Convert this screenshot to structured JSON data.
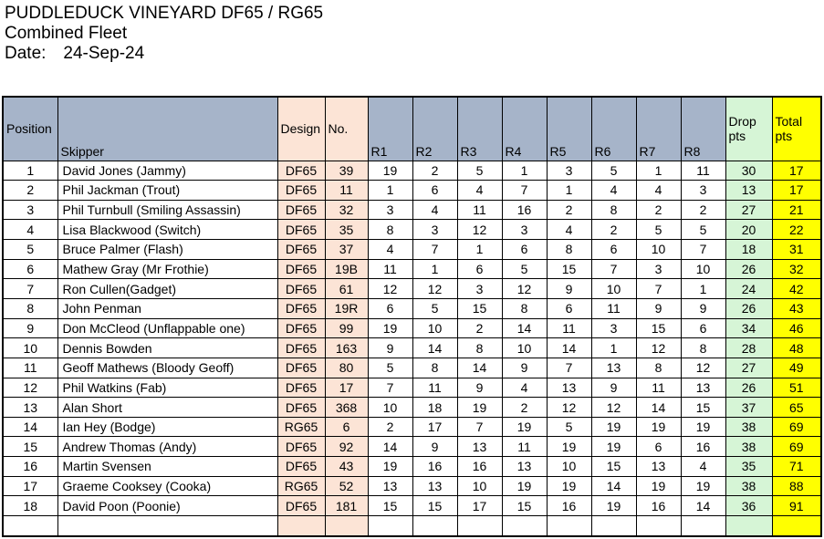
{
  "colors": {
    "header-blue": "#A6B4C9",
    "peach": "#FCE4D6",
    "green": "#D6F5D6",
    "yellow": "#FFFF00",
    "border": "#000000"
  },
  "header": {
    "title": "PUDDLEDUCK VINEYARD DF65 / RG65",
    "subtitle": "Combined Fleet",
    "date_label": "Date:",
    "date_value": "24-Sep-24"
  },
  "table": {
    "headers": {
      "position": "Position",
      "skipper": "Skipper",
      "design": "Design",
      "no": "No.",
      "races": [
        "R1",
        "R2",
        "R3",
        "R4",
        "R5",
        "R6",
        "R7",
        "R8"
      ],
      "drop": "Drop pts",
      "total": "Total pts"
    },
    "rows": [
      {
        "position": 1,
        "skipper": "David Jones (Jammy)",
        "design": "DF65",
        "no": "39",
        "races": [
          19,
          2,
          5,
          1,
          3,
          5,
          1,
          11
        ],
        "drop": 30,
        "total": 17
      },
      {
        "position": 2,
        "skipper": "Phil Jackman (Trout)",
        "design": "DF65",
        "no": "11",
        "races": [
          1,
          6,
          4,
          7,
          1,
          4,
          4,
          3
        ],
        "drop": 13,
        "total": 17
      },
      {
        "position": 3,
        "skipper": "Phil Turnbull (Smiling Assassin)",
        "design": "DF65",
        "no": "32",
        "races": [
          3,
          4,
          11,
          16,
          2,
          8,
          2,
          2
        ],
        "drop": 27,
        "total": 21
      },
      {
        "position": 4,
        "skipper": "Lisa Blackwood (Switch)",
        "design": "DF65",
        "no": "35",
        "races": [
          8,
          3,
          12,
          3,
          4,
          2,
          5,
          5
        ],
        "drop": 20,
        "total": 22
      },
      {
        "position": 5,
        "skipper": "Bruce Palmer (Flash)",
        "design": "DF65",
        "no": "37",
        "races": [
          4,
          7,
          1,
          6,
          8,
          6,
          10,
          7
        ],
        "drop": 18,
        "total": 31
      },
      {
        "position": 6,
        "skipper": "Mathew Gray (Mr Frothie)",
        "design": "DF65",
        "no": "19B",
        "races": [
          11,
          1,
          6,
          5,
          15,
          7,
          3,
          10
        ],
        "drop": 26,
        "total": 32
      },
      {
        "position": 7,
        "skipper": "Ron Cullen(Gadget)",
        "design": "DF65",
        "no": "61",
        "races": [
          12,
          12,
          3,
          12,
          9,
          10,
          7,
          1
        ],
        "drop": 24,
        "total": 42
      },
      {
        "position": 8,
        "skipper": "John Penman",
        "design": "DF65",
        "no": "19R",
        "races": [
          6,
          5,
          15,
          8,
          6,
          11,
          9,
          9
        ],
        "drop": 26,
        "total": 43
      },
      {
        "position": 9,
        "skipper": "Don McCleod (Unflappable one)",
        "design": "DF65",
        "no": "99",
        "races": [
          19,
          10,
          2,
          14,
          11,
          3,
          15,
          6
        ],
        "drop": 34,
        "total": 46
      },
      {
        "position": 10,
        "skipper": "Dennis Bowden",
        "design": "DF65",
        "no": "163",
        "races": [
          9,
          14,
          8,
          10,
          14,
          1,
          12,
          8
        ],
        "drop": 28,
        "total": 48
      },
      {
        "position": 11,
        "skipper": "Geoff Mathews (Bloody Geoff)",
        "design": "DF65",
        "no": "80",
        "races": [
          5,
          8,
          14,
          9,
          7,
          13,
          8,
          12
        ],
        "drop": 27,
        "total": 49
      },
      {
        "position": 12,
        "skipper": "Phil Watkins (Fab)",
        "design": "DF65",
        "no": "17",
        "races": [
          7,
          11,
          9,
          4,
          13,
          9,
          11,
          13
        ],
        "drop": 26,
        "total": 51
      },
      {
        "position": 13,
        "skipper": "Alan Short",
        "design": "DF65",
        "no": "368",
        "races": [
          10,
          18,
          19,
          2,
          12,
          12,
          14,
          15
        ],
        "drop": 37,
        "total": 65
      },
      {
        "position": 14,
        "skipper": "Ian Hey (Bodge)",
        "design": "RG65",
        "no": "6",
        "races": [
          2,
          17,
          7,
          19,
          5,
          19,
          19,
          19
        ],
        "drop": 38,
        "total": 69
      },
      {
        "position": 15,
        "skipper": "Andrew Thomas (Andy)",
        "design": "DF65",
        "no": "92",
        "races": [
          14,
          9,
          13,
          11,
          19,
          19,
          6,
          16
        ],
        "drop": 38,
        "total": 69
      },
      {
        "position": 16,
        "skipper": "Martin Svensen",
        "design": "DF65",
        "no": "43",
        "races": [
          19,
          16,
          16,
          13,
          10,
          15,
          13,
          4
        ],
        "drop": 35,
        "total": 71
      },
      {
        "position": 17,
        "skipper": "Graeme Cooksey (Cooka)",
        "design": "RG65",
        "no": "52",
        "races": [
          13,
          13,
          10,
          19,
          19,
          14,
          19,
          19
        ],
        "drop": 38,
        "total": 88
      },
      {
        "position": 18,
        "skipper": "David Poon (Poonie)",
        "design": "DF65",
        "no": "181",
        "races": [
          15,
          15,
          17,
          15,
          16,
          19,
          16,
          14
        ],
        "drop": 36,
        "total": 91
      }
    ],
    "trailing_empty_row": true
  }
}
